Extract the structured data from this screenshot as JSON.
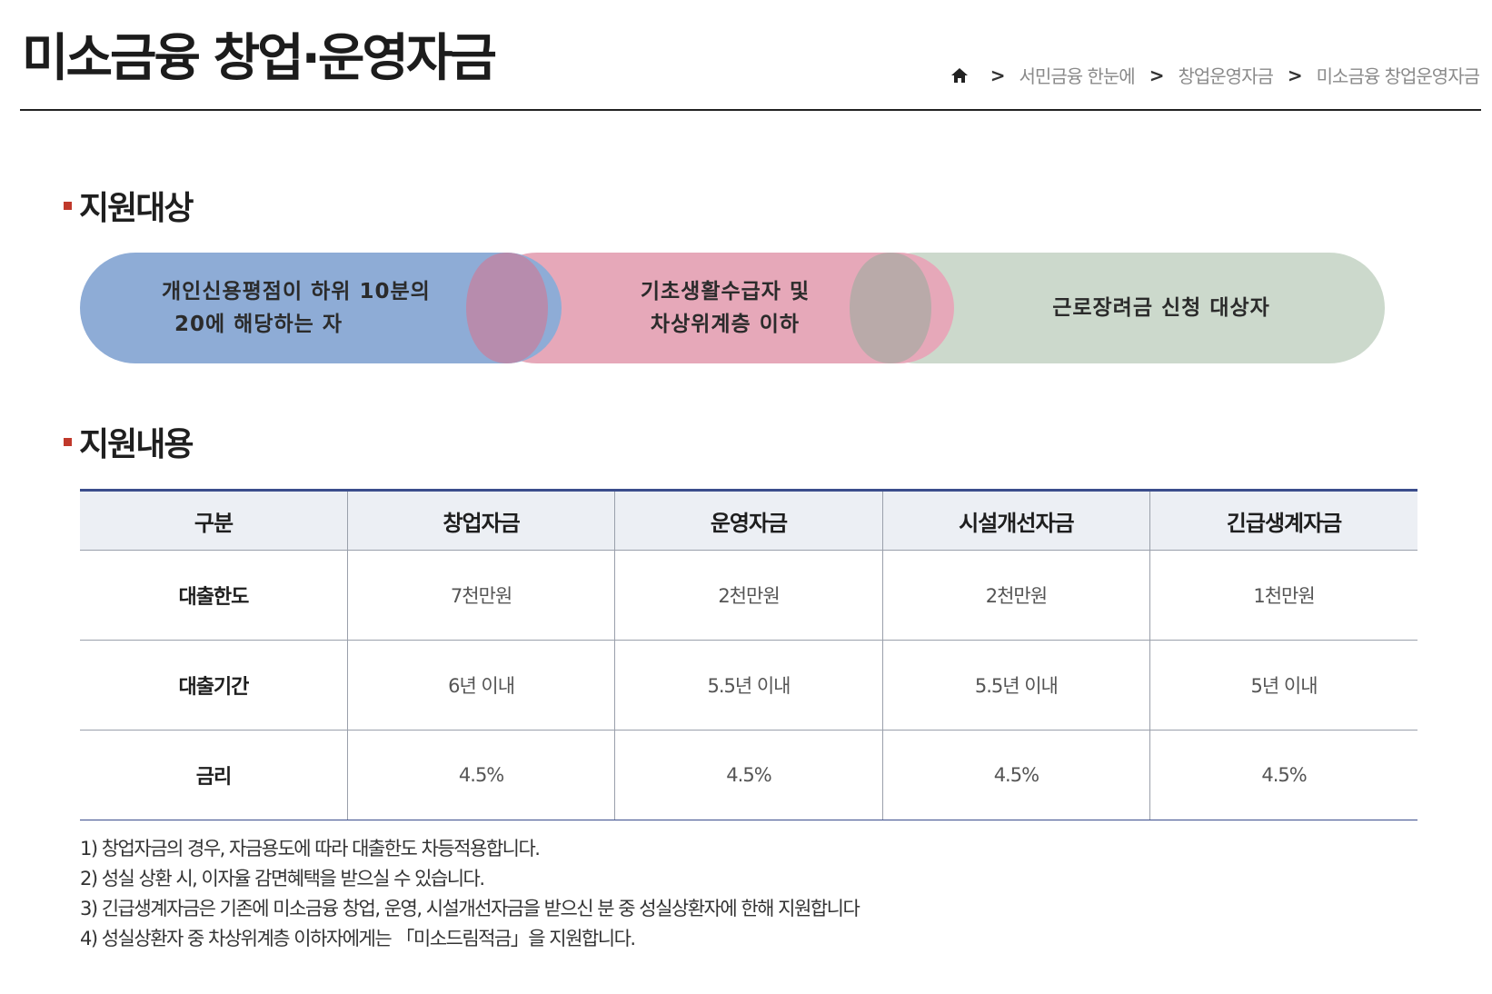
{
  "header": {
    "title": "미소금융 창업·운영자금",
    "breadcrumb": [
      {
        "label": "서민금융 한눈에"
      },
      {
        "label": "창업운영자금"
      },
      {
        "label": "미소금융 창업운영자금"
      }
    ]
  },
  "sections": {
    "target_heading": "지원대상",
    "target_items": [
      {
        "line1": "개인신용평점이 하위 10분의",
        "line2": "20에 해당하는 자",
        "color": "#8eacd6"
      },
      {
        "line1": "기초생활수급자 및",
        "line2": "차상위계층 이하",
        "color": "#e6a8b9"
      },
      {
        "line1": "근로장려금 신청 대상자",
        "line2": "",
        "color": "#ccd9cc"
      }
    ],
    "overlap_colors": [
      "#b78cad",
      "#b9aaa9"
    ],
    "content_heading": "지원내용"
  },
  "table": {
    "headers": [
      "구분",
      "창업자금",
      "운영자금",
      "시설개선자금",
      "긴급생계자금"
    ],
    "rows": [
      {
        "label": "대출한도",
        "cells": [
          "7천만원",
          "2천만원",
          "2천만원",
          "1천만원"
        ]
      },
      {
        "label": "대출기간",
        "cells": [
          "6년 이내",
          "5.5년 이내",
          "5.5년 이내",
          "5년 이내"
        ]
      },
      {
        "label": "금리",
        "cells": [
          "4.5%",
          "4.5%",
          "4.5%",
          "4.5%"
        ]
      }
    ]
  },
  "notes": [
    "1) 창업자금의 경우, 자금용도에 따라 대출한도 차등적용합니다.",
    "2) 성실 상환 시, 이자율 감면혜택을 받으실 수 있습니다.",
    "3) 긴급생계자금은 기존에 미소금융 창업, 운영, 시설개선자금을 받으신 분 중 성실상환자에 한해 지원합니다",
    "4) 성실상환자 중 차상위계층 이하자에게는 「미소드림적금」을 지원합니다."
  ],
  "colors": {
    "accent_bullet": "#c0392b",
    "table_top_border": "#3b4d8c",
    "table_header_bg": "#eceff4"
  }
}
